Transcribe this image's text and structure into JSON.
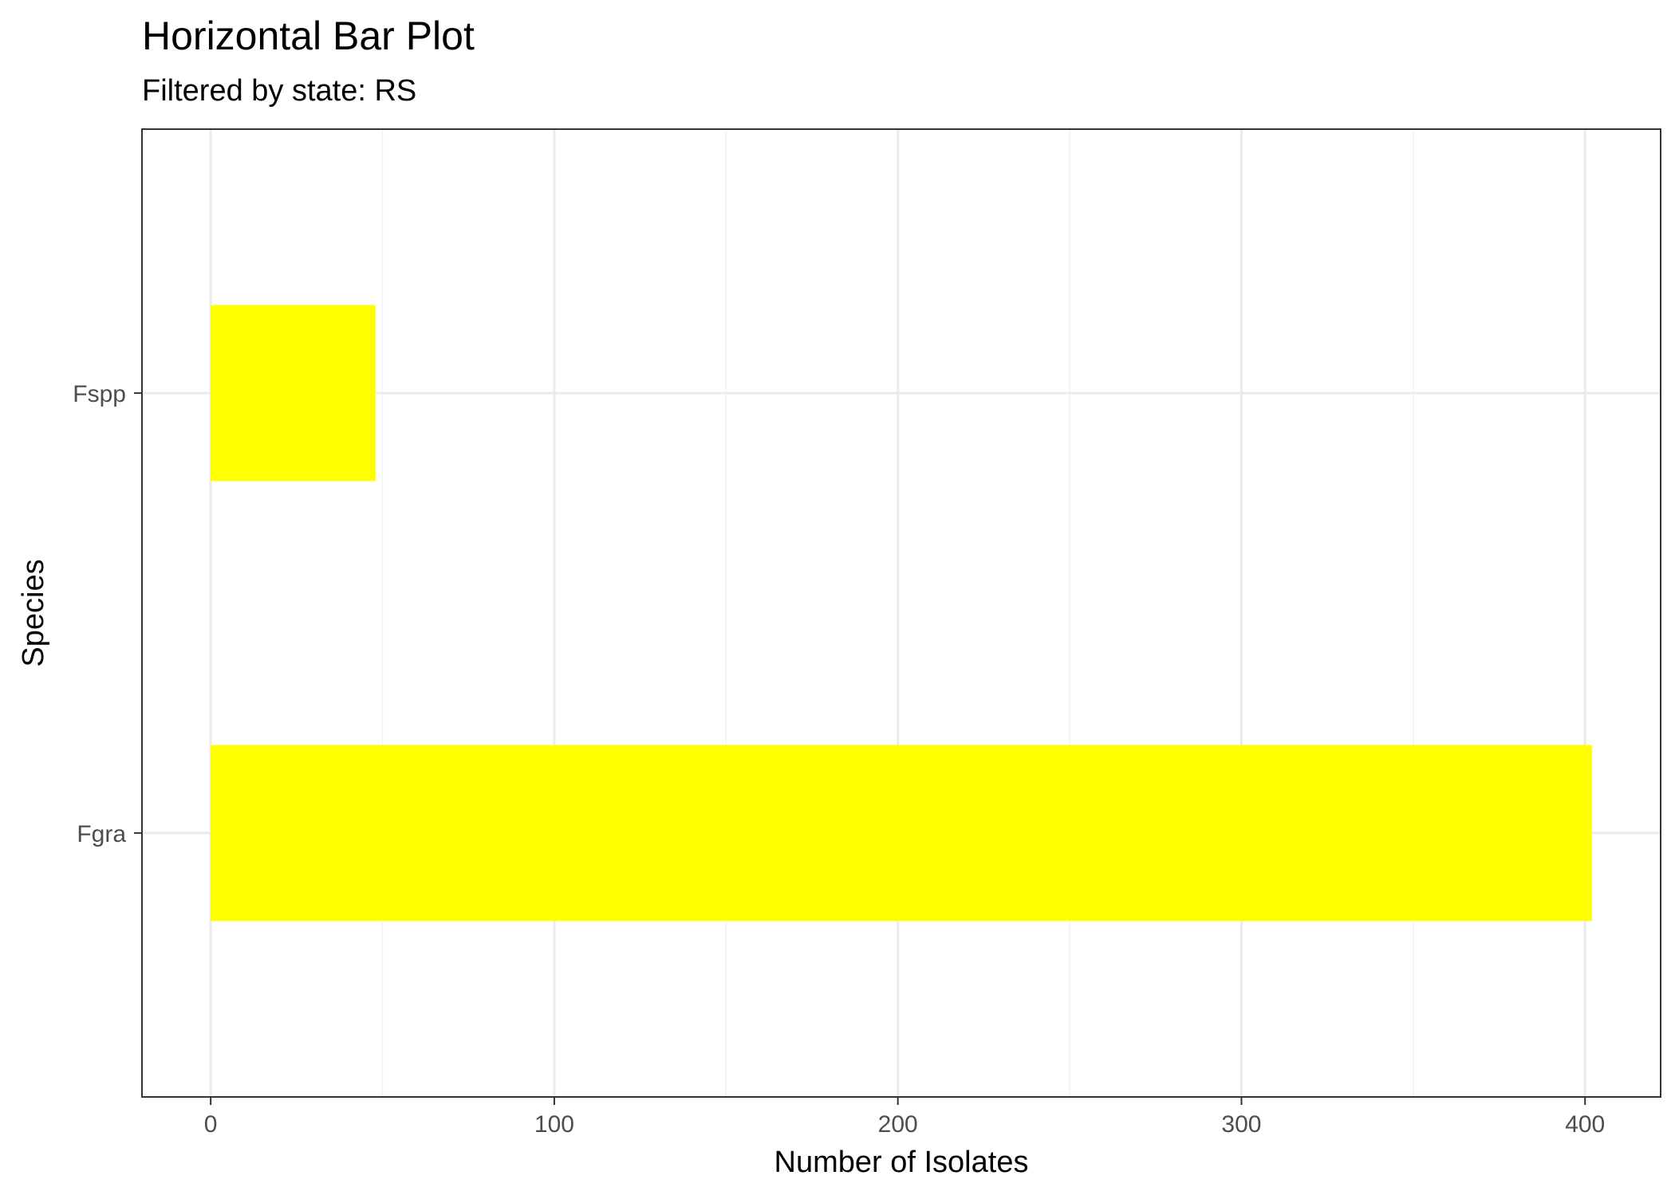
{
  "chart_data": {
    "type": "bar",
    "orientation": "horizontal",
    "title": "Horizontal Bar Plot",
    "subtitle": "Filtered by state: RS",
    "xlabel": "Number of Isolates",
    "ylabel": "Species",
    "categories": [
      "Fgra",
      "Fspp"
    ],
    "values": [
      402,
      48
    ],
    "xlim": [
      -20,
      422
    ],
    "x_ticks": [
      0,
      100,
      200,
      300,
      400
    ],
    "x_tick_labels": [
      "0",
      "100",
      "200",
      "300",
      "400"
    ],
    "grid": true,
    "legend": "none",
    "colors": {
      "bar_fill": "#FFFF00",
      "panel_border": "#333333",
      "grid_major": "#EBEBEB",
      "grid_minor": "#F2F2F2",
      "tick_text": "#4D4D4D",
      "text": "#000000"
    }
  }
}
